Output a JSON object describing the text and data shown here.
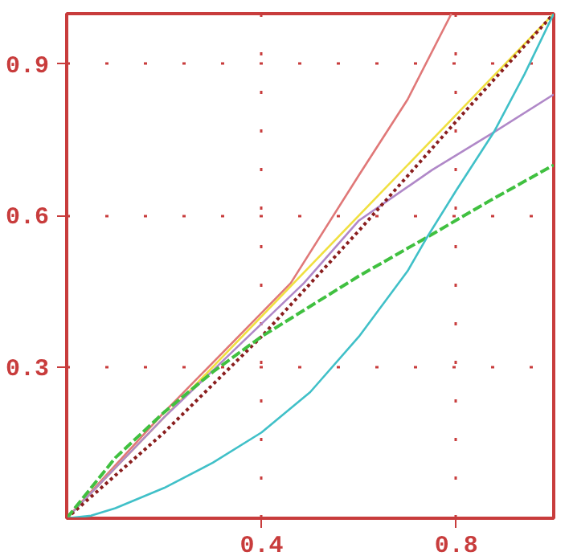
{
  "chart_data": {
    "type": "line",
    "xlim": [
      0,
      1
    ],
    "ylim": [
      0,
      1
    ],
    "xticks": [
      0.4,
      0.8
    ],
    "yticks": [
      0.3,
      0.6,
      0.9
    ],
    "grid": true,
    "line_style": "solid",
    "series": [
      {
        "color": "#e07878",
        "x": [
          0,
          0.2,
          0.46,
          0.6,
          0.7,
          0.79
        ],
        "values": [
          0,
          0.21,
          0.466,
          0.68,
          0.83,
          1.0
        ]
      },
      {
        "color": "#f0e040",
        "x": [
          0,
          1
        ],
        "values": [
          0,
          1
        ]
      },
      {
        "color": "#b088c8",
        "x": [
          0,
          0.2,
          0.487,
          0.6,
          0.75,
          0.877,
          1
        ],
        "values": [
          0,
          0.2,
          0.466,
          0.59,
          0.69,
          0.765,
          0.84
        ]
      },
      {
        "color": "#8a1e1e",
        "line_style": "dotted",
        "x": [
          0,
          0.2,
          0.4,
          0.6,
          0.8,
          1
        ],
        "values": [
          0,
          0.17,
          0.36,
          0.57,
          0.787,
          1
        ]
      },
      {
        "color": "#40c040",
        "line_style": "dashed",
        "x": [
          0,
          0.1,
          0.2,
          0.3,
          0.4,
          0.5,
          0.6,
          0.74,
          0.87,
          1
        ],
        "values": [
          0,
          0.12,
          0.21,
          0.29,
          0.36,
          0.42,
          0.48,
          0.557,
          0.63,
          0.7
        ]
      },
      {
        "color": "#40c0c8",
        "x": [
          0,
          0.05,
          0.1,
          0.2,
          0.3,
          0.4,
          0.5,
          0.6,
          0.7,
          0.74,
          0.8,
          0.877,
          0.94,
          1
        ],
        "values": [
          0,
          0.005,
          0.02,
          0.06,
          0.11,
          0.17,
          0.25,
          0.36,
          0.49,
          0.557,
          0.65,
          0.765,
          0.88,
          1
        ]
      }
    ]
  }
}
